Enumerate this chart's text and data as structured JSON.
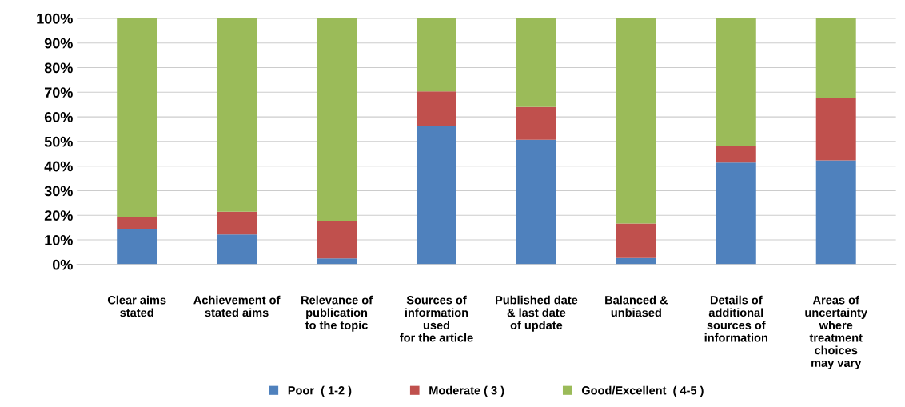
{
  "chart_data": {
    "type": "bar",
    "stacked": true,
    "categories": [
      "Clear aims\nstated",
      "Achievement of\nstated aims",
      "Relevance of\npublication\nto the topic",
      "Sources of\ninformation\nused\nfor the article",
      "Published date\n& last date\nof update",
      "Balanced &\nunbiased",
      "Details of\nadditional\nsources of\ninformation",
      "Areas of\nuncertainty\nwhere\ntreatment\nchoices\nmay vary"
    ],
    "series": [
      {
        "name": "Poor  ( 1-2 )",
        "color": "#4f81bd",
        "values": [
          14.6,
          12.2,
          2.5,
          56.2,
          50.7,
          2.6,
          41.4,
          42.3
        ]
      },
      {
        "name": "Moderate ( 3 )",
        "color": "#c0504d",
        "values": [
          4.8,
          9.3,
          15.0,
          14.1,
          13.3,
          14.1,
          6.6,
          25.2
        ]
      },
      {
        "name": "Good/Excellent  ( 4-5 )",
        "color": "#9bbb59",
        "values": [
          80.6,
          78.5,
          82.5,
          29.7,
          36.0,
          83.3,
          52.0,
          32.5
        ]
      }
    ],
    "ylim": [
      0,
      100
    ],
    "yticks": [
      {
        "value": 0,
        "label": "0%"
      },
      {
        "value": 10,
        "label": "10%"
      },
      {
        "value": 20,
        "label": "20%"
      },
      {
        "value": 30,
        "label": "30%"
      },
      {
        "value": 40,
        "label": "40%"
      },
      {
        "value": 50,
        "label": "50%"
      },
      {
        "value": 60,
        "label": "60%"
      },
      {
        "value": 70,
        "label": "70%"
      },
      {
        "value": 80,
        "label": "80%"
      },
      {
        "value": 90,
        "label": "90%"
      },
      {
        "value": 100,
        "label": "100%"
      }
    ],
    "grid": "y",
    "legend": "bottom"
  }
}
